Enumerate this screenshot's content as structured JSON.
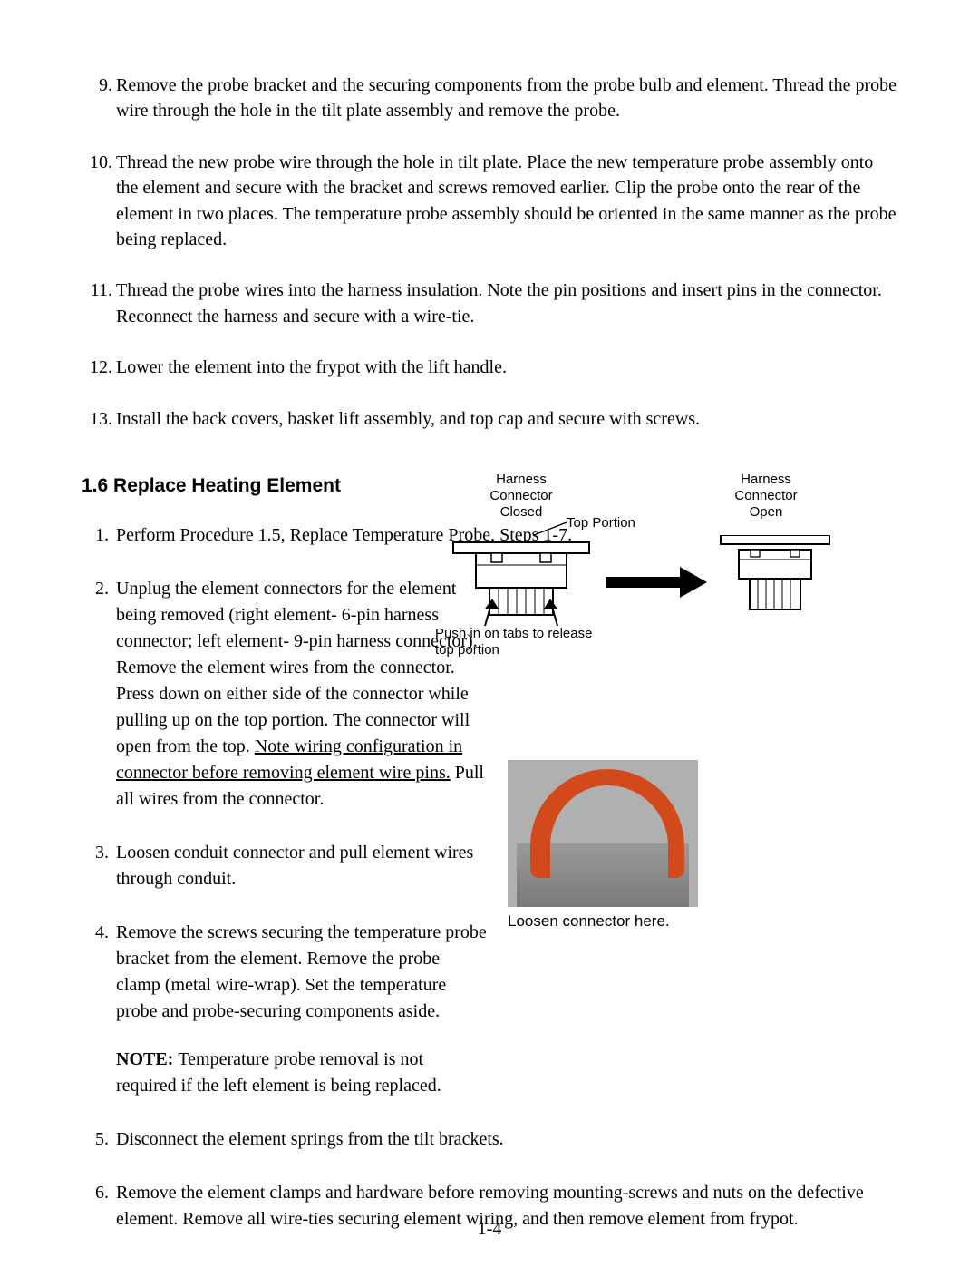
{
  "upper_list": {
    "start": 9,
    "items": [
      "Remove the probe bracket and the securing components from the probe bulb and element. Thread the probe wire through the hole in the tilt plate assembly and remove the probe.",
      "Thread the new probe wire through the hole in tilt plate.  Place the new temperature probe assembly onto the element and secure with the bracket and screws removed earlier.  Clip the probe onto the rear of the element in two places.  The temperature probe assembly should be oriented in the same manner as the probe being replaced.",
      "Thread the probe wires into the harness insulation.  Note the pin positions and insert pins in the connector. Reconnect the harness and secure with a wire-tie.",
      "Lower the element into the frypot with the lift handle.",
      "Install the back covers, basket lift assembly, and top cap and secure with screws."
    ]
  },
  "section_heading": "1.6  Replace Heating Element",
  "lower_list": {
    "start": 1,
    "items": [
      {
        "text": "Perform Procedure 1.5, Replace Temperature Probe, Steps 1-7.",
        "narrow": false
      },
      {
        "text_pre": "Unplug the element connectors for the element being removed (right element- 6-pin harness connector; left element- 9-pin harness connector).  Remove the element wires from the connector.  Press down on either side of the connector while pulling up on the top portion.  The connector will open from the top.  ",
        "underlined": "Note wiring configuration in connector before removing element wire pins.",
        "text_post": "  Pull all wires from the connector.",
        "narrow": true
      },
      {
        "text": "Loosen conduit connector and pull element wires through conduit.",
        "narrow": true
      },
      {
        "text": "Remove the screws securing the temperature probe bracket from the element.  Remove the probe clamp (metal wire-wrap).  Set the temperature probe and probe-securing components aside.",
        "note": "Temperature probe removal is not required if the left element is being replaced.",
        "narrow": true
      },
      {
        "text": "Disconnect the element springs from the tilt brackets.",
        "narrow": false
      },
      {
        "text": "Remove the element clamps and hardware before removing mounting-screws and nuts on the defective element.  Remove all wire-ties securing element wiring, and then remove element from frypot.",
        "narrow": false
      }
    ]
  },
  "figure": {
    "label_closed_l1": "Harness",
    "label_closed_l2": "Connector",
    "label_closed_l3": "Closed",
    "label_open_l1": "Harness",
    "label_open_l2": "Connector",
    "label_open_l3": "Open",
    "top_portion": "Top Portion",
    "push_text_l1": "Push in on tabs to release",
    "push_text_l2": "top portion",
    "stroke": "#000000",
    "fill_bg": "#ffffff"
  },
  "photo_caption": "Loosen connector here.",
  "page_number": "1-4",
  "note_label": "NOTE:  "
}
